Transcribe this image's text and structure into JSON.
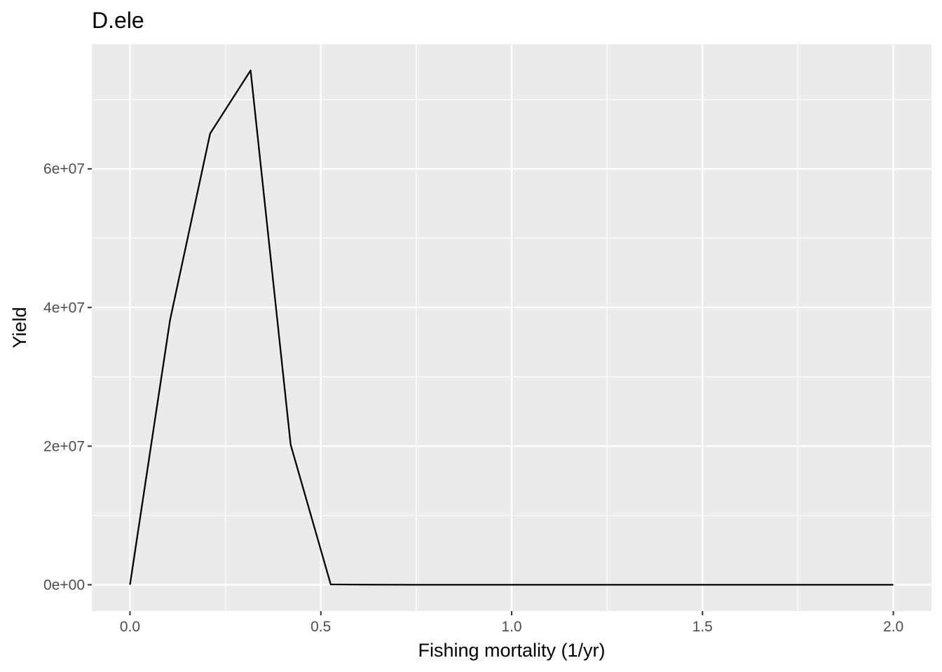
{
  "chart_data": {
    "type": "line",
    "title": "D.ele",
    "xlabel": "Fishing mortality (1/yr)",
    "ylabel": "Yield",
    "xlim": [
      -0.1,
      2.1
    ],
    "ylim": [
      -3800000,
      78000000
    ],
    "x_ticks": [
      {
        "value": 0.0,
        "label": "0.0"
      },
      {
        "value": 0.5,
        "label": "0.5"
      },
      {
        "value": 1.0,
        "label": "1.0"
      },
      {
        "value": 1.5,
        "label": "1.5"
      },
      {
        "value": 2.0,
        "label": "2.0"
      }
    ],
    "y_ticks": [
      {
        "value": 0,
        "label": "0e+00"
      },
      {
        "value": 20000000,
        "label": "2e+07"
      },
      {
        "value": 40000000,
        "label": "4e+07"
      },
      {
        "value": 60000000,
        "label": "6e+07"
      }
    ],
    "x_minor": [
      0.25,
      0.75,
      1.25,
      1.75
    ],
    "y_minor": [
      10000000,
      30000000,
      50000000,
      70000000
    ],
    "grid": true,
    "panel_background": "#ebebeb",
    "grid_color": "#ffffff",
    "line_color": "#000000",
    "series": [
      {
        "x": [
          0.0,
          0.105,
          0.21,
          0.316,
          0.421,
          0.526,
          0.632,
          0.737,
          0.842,
          0.947,
          1.053,
          1.158,
          1.263,
          1.368,
          1.474,
          1.579,
          1.684,
          1.789,
          1.895,
          2.0
        ],
        "values": [
          0,
          38200000,
          65100000,
          74200000,
          20200000,
          50000,
          10000,
          0,
          0,
          0,
          0,
          0,
          0,
          0,
          0,
          0,
          0,
          0,
          0,
          0
        ]
      }
    ]
  }
}
